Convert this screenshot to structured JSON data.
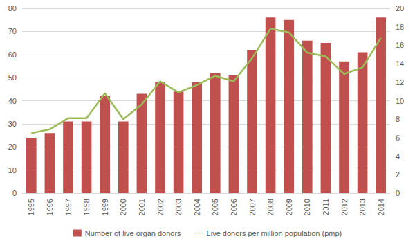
{
  "chart_data": {
    "type": "bar",
    "categories": [
      "1995",
      "1996",
      "1997",
      "1998",
      "1999",
      "2000",
      "2001",
      "2002",
      "2003",
      "2004",
      "2005",
      "2006",
      "2007",
      "2008",
      "2009",
      "2010",
      "2011",
      "2012",
      "2013",
      "2014"
    ],
    "series": [
      {
        "name": "Number of live organ donors",
        "type": "bar",
        "color": "#c0504d",
        "values": [
          24,
          26,
          31,
          31,
          42,
          31,
          43,
          48,
          44,
          48,
          52,
          51,
          62,
          76,
          75,
          66,
          65,
          57,
          61,
          76
        ]
      },
      {
        "name": "Live donors per million population (pmp)",
        "type": "line",
        "axis": "y2",
        "color": "#9bbb59",
        "values": [
          6.5,
          6.9,
          8.1,
          8.1,
          10.8,
          8.0,
          9.6,
          12.1,
          10.9,
          11.7,
          12.7,
          12.1,
          14.6,
          17.8,
          17.4,
          15.2,
          14.8,
          12.9,
          13.6,
          16.8
        ]
      }
    ],
    "ylim": [
      0,
      80
    ],
    "yticks": [
      0,
      10,
      20,
      30,
      40,
      50,
      60,
      70,
      80
    ],
    "y2lim": [
      0,
      20
    ],
    "y2ticks": [
      0,
      2,
      4,
      6,
      8,
      10,
      12,
      14,
      16,
      18,
      20
    ],
    "grid": true,
    "legend": "bottom"
  }
}
